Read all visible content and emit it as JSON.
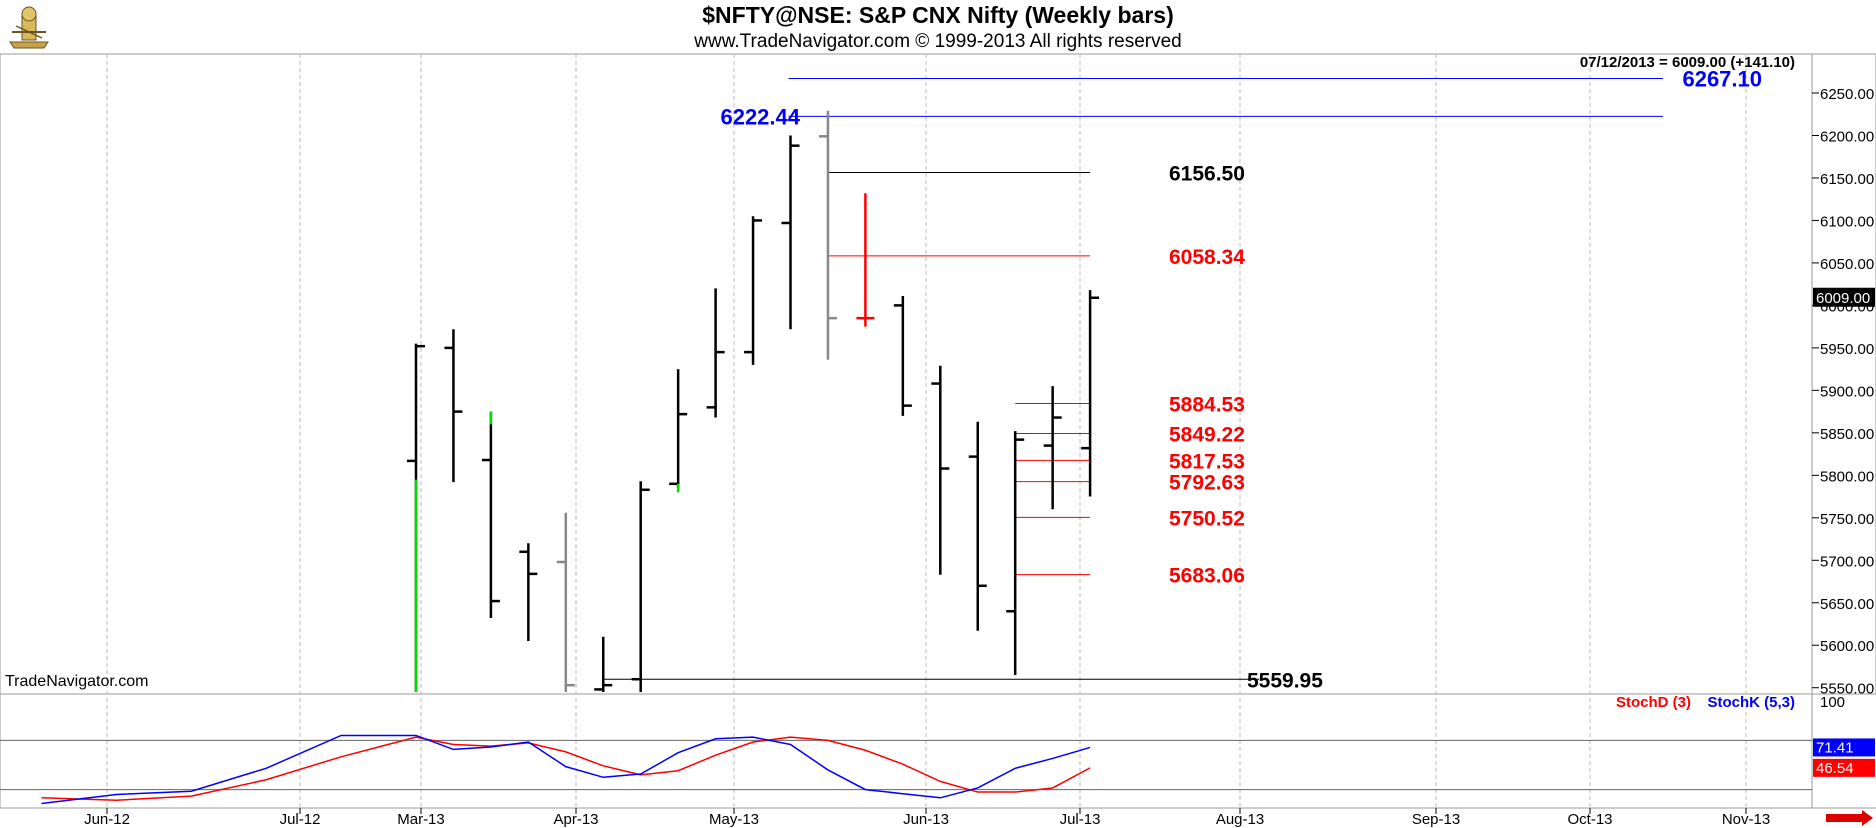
{
  "header": {
    "title": "$NFTY@NSE:  S&P CNX Nifty  (Weekly bars)",
    "copyright": "www.TradeNavigator.com © 1999-2013 All rights reserved",
    "watermark": "TradeNavigator.com"
  },
  "colors": {
    "up": "#000000",
    "down": "#000000",
    "green": "#00dd00",
    "gray": "#888888",
    "red": "#ff0000",
    "blue": "#0000ff",
    "grid": "#bbbbbb"
  },
  "chart_data": [
    {
      "type": "ohlc",
      "title": "$NFTY@NSE:  S&P CNX Nifty  (Weekly bars)",
      "last_readout": "07/12/2013 = 6009.00 (+141.10)",
      "last_value_label": "6009.00",
      "last_value": 6009.0,
      "x_ticks": [
        "Jun-12",
        "Jul-12",
        "Mar-13",
        "Apr-13",
        "May-13",
        "Jun-13",
        "Jul-13",
        "Aug-13",
        "Sep-13",
        "Oct-13",
        "Nov-13"
      ],
      "y_ticks": [
        "6250.00",
        "6200.00",
        "6150.00",
        "6100.00",
        "6050.00",
        "6000.00",
        "5950.00",
        "5900.00",
        "5850.00",
        "5800.00",
        "5750.00",
        "5700.00",
        "5650.00",
        "5600.00",
        "5550.00"
      ],
      "ylim": [
        5545,
        6290
      ],
      "bars": [
        {
          "o": 5817,
          "h": 5955,
          "l": 5545,
          "c": 5952,
          "color": "black"
        },
        {
          "o": 5950,
          "h": 5972,
          "l": 5792,
          "c": 5875,
          "color": "black"
        },
        {
          "o": 5818,
          "h": 5875,
          "l": 5632,
          "c": 5652,
          "color": "black"
        },
        {
          "o": 5710,
          "h": 5720,
          "l": 5605,
          "c": 5684,
          "color": "black"
        },
        {
          "o": 5698,
          "h": 5756,
          "l": 5545,
          "c": 5553,
          "color": "gray"
        },
        {
          "o": 5548,
          "h": 5610,
          "l": 5545,
          "c": 5553,
          "color": "black"
        },
        {
          "o": 5560,
          "h": 5793,
          "l": 5545,
          "c": 5783,
          "color": "black"
        },
        {
          "o": 5790,
          "h": 5925,
          "l": 5785,
          "c": 5872,
          "color": "black"
        },
        {
          "o": 5880,
          "h": 6020,
          "l": 5868,
          "c": 5945,
          "color": "black"
        },
        {
          "o": 5945,
          "h": 6105,
          "l": 5930,
          "c": 6100,
          "color": "black"
        },
        {
          "o": 6097,
          "h": 6200,
          "l": 5972,
          "c": 6188,
          "color": "black"
        },
        {
          "o": 6199,
          "h": 6229,
          "l": 5936,
          "c": 5985,
          "color": "gray"
        },
        {
          "o": 5985,
          "h": 6132,
          "l": 5975,
          "c": 5985,
          "color": "red"
        },
        {
          "o": 6000,
          "h": 6011,
          "l": 5870,
          "c": 5882,
          "color": "black"
        },
        {
          "o": 5908,
          "h": 5929,
          "l": 5683,
          "c": 5808,
          "color": "black"
        },
        {
          "o": 5822,
          "h": 5863,
          "l": 5617,
          "c": 5670,
          "color": "black"
        },
        {
          "o": 5640,
          "h": 5852,
          "l": 5565,
          "c": 5842,
          "color": "black"
        },
        {
          "o": 5835,
          "h": 5905,
          "l": 5760,
          "c": 5868,
          "color": "black"
        },
        {
          "o": 5832,
          "h": 6018,
          "l": 5775,
          "c": 6009,
          "color": "black"
        }
      ],
      "levels": [
        {
          "value": 6267.1,
          "label": "6267.10",
          "color": "blue",
          "from": 10,
          "to": 37
        },
        {
          "value": 6222.44,
          "label": "6222.44",
          "color": "blue",
          "from": 10,
          "to": 37
        },
        {
          "value": 6156.5,
          "label": "6156.50",
          "color": "black",
          "from": 11,
          "to": 18
        },
        {
          "value": 6058.34,
          "label": "6058.34",
          "color": "red",
          "from": 11,
          "to": 18
        },
        {
          "value": 5884.53,
          "label": "5884.53",
          "color": "red",
          "from": 16,
          "to": 18
        },
        {
          "value": 5849.22,
          "label": "5849.22",
          "color": "red",
          "from": 16,
          "to": 18
        },
        {
          "value": 5817.53,
          "label": "5817.53",
          "color": "red",
          "from": 16,
          "to": 18
        },
        {
          "value": 5792.63,
          "label": "5792.63",
          "color": "red",
          "from": 16,
          "to": 18
        },
        {
          "value": 5750.52,
          "label": "5750.52",
          "color": "red",
          "from": 16,
          "to": 18
        },
        {
          "value": 5683.06,
          "label": "5683.06",
          "color": "red",
          "from": 16,
          "to": 18
        },
        {
          "value": 5559.95,
          "label": "5559.95",
          "color": "black",
          "from": 5,
          "to": 20
        }
      ]
    },
    {
      "type": "line",
      "title": "Stochastic",
      "ylim": [
        0,
        100
      ],
      "y_ticks": [
        "100"
      ],
      "x": [
        -10,
        -8,
        -6,
        -4,
        -2,
        0,
        1,
        2,
        3,
        4,
        5,
        6,
        7,
        8,
        9,
        10,
        11,
        12,
        13,
        14,
        15,
        16,
        17,
        18
      ],
      "series": [
        {
          "name": "StochD (3)",
          "color": "red",
          "last_label": "46.54",
          "values": [
            10,
            7,
            12,
            32,
            60,
            84,
            75,
            73,
            77,
            66,
            49,
            38,
            43,
            62,
            78,
            84,
            80,
            68,
            51,
            30,
            17,
            17,
            22,
            46.5
          ]
        },
        {
          "name": "StochK (5,3)",
          "color": "blue",
          "last_label": "71.41",
          "values": [
            3,
            14,
            18,
            46,
            86,
            86,
            69,
            72,
            78,
            48,
            35,
            39,
            65,
            82,
            84,
            75,
            44,
            20,
            15,
            10,
            22,
            46,
            58,
            71.4
          ]
        }
      ]
    }
  ]
}
